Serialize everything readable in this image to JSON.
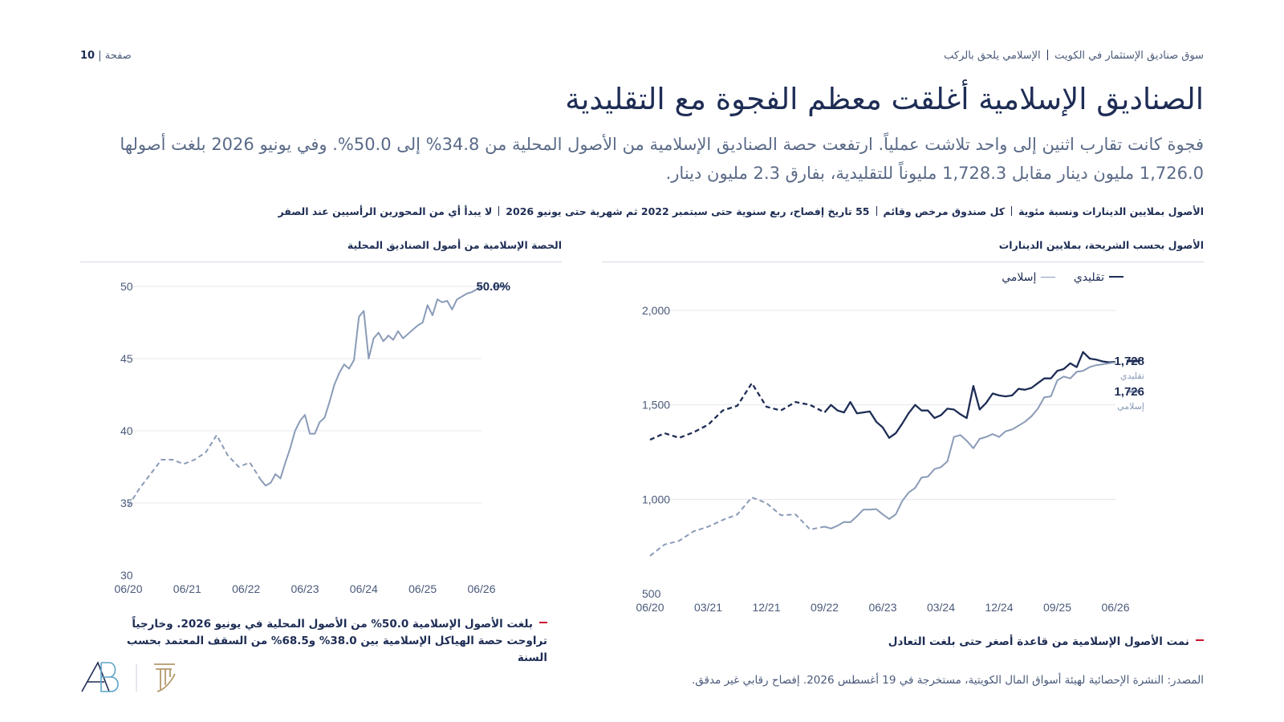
{
  "header": {
    "breadcrumb_section": "سوق صناديق الإستثمار في الكويت",
    "breadcrumb_topic": "الإسلامي يلحق بالركب",
    "page_label": "صفحة",
    "page_number": "10"
  },
  "title": "الصناديق الإسلامية أغلقت معظم الفجوة مع التقليدية",
  "subtitle": "فجوة كانت تقارب اثنين إلى واحد تلاشت عملياً. ارتفعت حصة الصناديق الإسلامية من الأصول المحلية من 34.8% إلى 50.0%. وفي يونيو 2026 بلغت أصولها 1,726.0 مليون دينار مقابل 1,728.3 مليوناً للتقليدية، بفارق 2.3 مليون دينار.",
  "meta": {
    "items": [
      "الأصول بملايين الدينارات ونسبة مئوية",
      "كل صندوق مرخص وقائم",
      "55 تاريخ إفصاح، ربع سنوية حتى سبتمبر 2022 ثم شهرية حتى يونيو 2026",
      "لا يبدأ أي من المحورين الرأسيين عند الصفر"
    ]
  },
  "right_panel": {
    "title": "الأصول بحسب الشريحة، بملايين الدينارات",
    "note": "نمت الأصول الإسلامية من قاعدة أصغر حتى بلغت التعادل"
  },
  "left_panel": {
    "title": "الحصة الإسلامية من أصول الصناديق المحلية",
    "note": "بلغت الأصول الإسلامية 50.0% من الأصول المحلية في يونيو 2026. وخارجياً تراوحت حصة الهياكل الإسلامية بين 38.0% و68.5% من السقف المعتمد بحسب السنة"
  },
  "source": "المصدر: النشرة الإحصائية لهيئة أسواق المال الكويتية، مستخرجة في 19 أغسطس 2026. إفصاح رقابي غير مدقق.",
  "colors": {
    "navy": "#1e2d55",
    "steel": "#8a9bb8",
    "accent_red": "#c8102e",
    "gold": "#b39a6e",
    "teal": "#5ba3c7"
  },
  "chart_data": [
    {
      "type": "line",
      "ylim": [
        500,
        2000
      ],
      "yticks": [
        "500",
        "1,000",
        "1,500",
        "2,000"
      ],
      "ytick_values": [
        500,
        1000,
        1500,
        2000
      ],
      "xticks": [
        "06/20",
        "03/21",
        "12/21",
        "09/22",
        "06/23",
        "03/24",
        "12/24",
        "09/25",
        "06/26"
      ],
      "xtick_values": [
        0,
        3,
        6,
        9,
        12,
        15,
        18,
        21,
        24
      ],
      "x_range": [
        0,
        24
      ],
      "dashed_until_x": 9,
      "legend_position": "top-right",
      "series": [
        {
          "name": "تقليدي",
          "color": "#1e2d55",
          "end_label": "1,728",
          "end_sublabel": "تقليدي",
          "x": [
            0,
            0.75,
            1.5,
            2.25,
            3,
            3.75,
            4.5,
            5.25,
            6,
            6.75,
            7.5,
            8.25,
            9,
            9.33,
            9.67,
            10,
            10.33,
            10.67,
            11,
            11.33,
            11.67,
            12,
            12.33,
            12.67,
            13,
            13.33,
            13.67,
            14,
            14.33,
            14.67,
            15,
            15.33,
            15.67,
            16,
            16.33,
            16.67,
            17,
            17.33,
            17.67,
            18,
            18.33,
            18.67,
            19,
            19.33,
            19.67,
            20,
            20.33,
            20.67,
            21,
            21.33,
            21.67,
            22,
            22.33,
            22.67,
            23,
            23.33,
            23.67,
            24
          ],
          "values": [
            1315,
            1350,
            1325,
            1355,
            1395,
            1470,
            1495,
            1615,
            1490,
            1470,
            1515,
            1500,
            1460,
            1500,
            1470,
            1460,
            1515,
            1455,
            1460,
            1465,
            1410,
            1380,
            1325,
            1350,
            1400,
            1455,
            1500,
            1470,
            1470,
            1430,
            1445,
            1480,
            1475,
            1450,
            1430,
            1600,
            1475,
            1510,
            1560,
            1550,
            1545,
            1550,
            1585,
            1580,
            1590,
            1615,
            1640,
            1640,
            1680,
            1690,
            1720,
            1700,
            1780,
            1745,
            1740,
            1730,
            1725,
            1728
          ]
        },
        {
          "name": "إسلامي",
          "color": "#8a9bb8",
          "end_label": "1,726",
          "end_sublabel": "إسلامي",
          "x": [
            0,
            0.75,
            1.5,
            2.25,
            3,
            3.75,
            4.5,
            5.25,
            6,
            6.75,
            7.5,
            8.25,
            9,
            9.33,
            9.67,
            10,
            10.33,
            10.67,
            11,
            11.33,
            11.67,
            12,
            12.33,
            12.67,
            13,
            13.33,
            13.67,
            14,
            14.33,
            14.67,
            15,
            15.33,
            15.67,
            16,
            16.33,
            16.67,
            17,
            17.33,
            17.67,
            18,
            18.33,
            18.67,
            19,
            19.33,
            19.67,
            20,
            20.33,
            20.67,
            21,
            21.33,
            21.67,
            22,
            22.33,
            22.67,
            23,
            23.33,
            23.67,
            24
          ],
          "values": [
            700,
            760,
            780,
            830,
            855,
            890,
            920,
            1010,
            980,
            915,
            920,
            840,
            855,
            845,
            860,
            880,
            878,
            910,
            945,
            945,
            948,
            920,
            895,
            920,
            990,
            1035,
            1060,
            1115,
            1120,
            1160,
            1170,
            1200,
            1330,
            1340,
            1310,
            1270,
            1320,
            1330,
            1345,
            1330,
            1360,
            1370,
            1390,
            1410,
            1440,
            1480,
            1540,
            1545,
            1630,
            1650,
            1640,
            1675,
            1680,
            1700,
            1710,
            1715,
            1720,
            1726
          ]
        }
      ]
    },
    {
      "type": "line",
      "ylim": [
        30,
        50
      ],
      "yticks": [
        "30",
        "35",
        "40",
        "45",
        "50"
      ],
      "ytick_values": [
        30,
        35,
        40,
        45,
        50
      ],
      "xticks": [
        "06/20",
        "06/21",
        "06/22",
        "06/23",
        "06/24",
        "06/25",
        "06/26"
      ],
      "xtick_values": [
        0,
        4,
        8,
        12,
        16,
        20,
        24
      ],
      "x_range": [
        0,
        24
      ],
      "dashed_until_x": 9,
      "series": [
        {
          "name": "الحصة الإسلامية",
          "color": "#8a9bb8",
          "end_label": "50.0%",
          "x": [
            0,
            0.75,
            1.5,
            2.25,
            3,
            3.75,
            4.5,
            5.25,
            6,
            6.75,
            7.5,
            8.25,
            9,
            9.33,
            9.67,
            10,
            10.33,
            10.67,
            11,
            11.33,
            11.67,
            12,
            12.33,
            12.67,
            13,
            13.33,
            13.67,
            14,
            14.33,
            14.67,
            15,
            15.33,
            15.67,
            16,
            16.33,
            16.67,
            17,
            17.33,
            17.67,
            18,
            18.33,
            18.67,
            19,
            19.33,
            19.67,
            20,
            20.33,
            20.67,
            21,
            21.33,
            21.67,
            22,
            22.33,
            22.67,
            23,
            23.33,
            23.67,
            24
          ],
          "values": [
            34.8,
            36.0,
            37.0,
            38.0,
            38.0,
            37.7,
            38.0,
            38.5,
            39.7,
            38.3,
            37.5,
            37.8,
            36.6,
            36.2,
            36.4,
            37.0,
            36.7,
            37.8,
            38.8,
            40.0,
            40.7,
            41.1,
            39.8,
            39.8,
            40.6,
            40.9,
            42.0,
            43.2,
            44.0,
            44.6,
            44.3,
            44.9,
            47.9,
            48.3,
            45.0,
            46.4,
            46.8,
            46.2,
            46.6,
            46.3,
            46.9,
            46.4,
            46.7,
            47.0,
            47.3,
            47.5,
            48.7,
            48.0,
            49.1,
            48.9,
            49.0,
            48.4,
            49.1,
            49.3,
            49.5,
            49.6,
            49.8,
            50.0
          ]
        }
      ]
    }
  ]
}
